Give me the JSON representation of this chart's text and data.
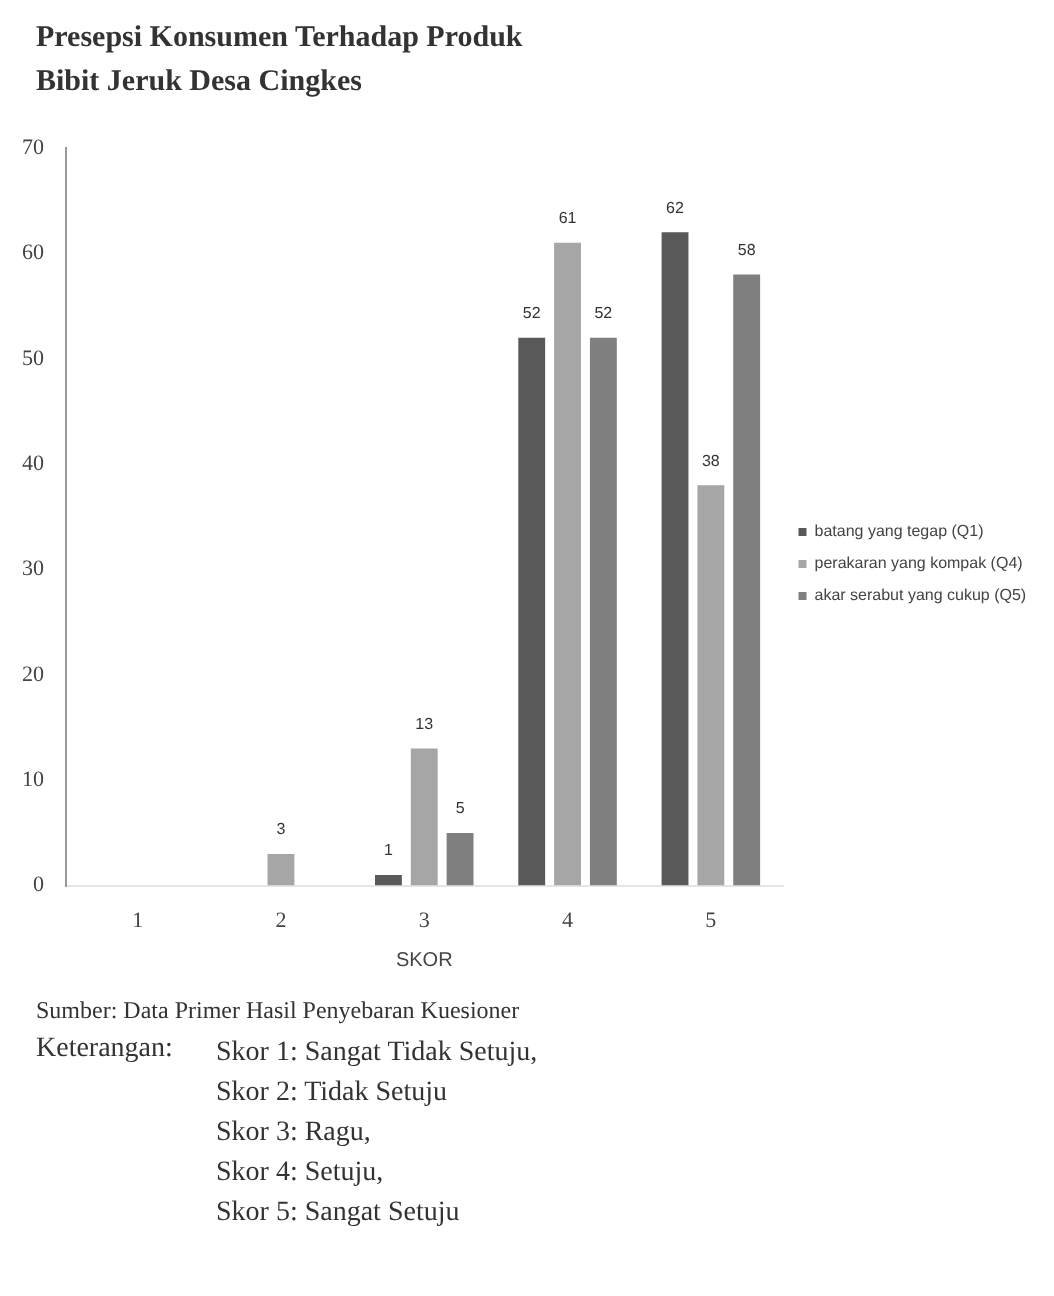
{
  "chart_data": {
    "type": "bar",
    "title": "Presepsi Konsumen Terhadap Produk Bibit Jeruk Desa Cingkes",
    "xlabel": "SKOR",
    "categories": [
      "1",
      "2",
      "3",
      "4",
      "5"
    ],
    "series": [
      {
        "name": "batang yang tegap (Q1)",
        "color": "#595959",
        "values": [
          0,
          0,
          1,
          52,
          62
        ],
        "value_labels": [
          null,
          null,
          "1",
          "52",
          "62"
        ]
      },
      {
        "name": "perakaran yang kompak (Q4)",
        "color": "#a6a6a6",
        "values": [
          0,
          3,
          13,
          61,
          38
        ],
        "value_labels": [
          null,
          "3",
          "13",
          "61",
          "38"
        ]
      },
      {
        "name": "akar serabut yang cukup (Q5)",
        "color": "#7f7f7f",
        "values": [
          0,
          0,
          5,
          52,
          58
        ],
        "value_labels": [
          null,
          null,
          "5",
          "52",
          "58"
        ]
      }
    ],
    "ylim": [
      0,
      70
    ],
    "yticks": [
      0,
      10,
      20,
      30,
      40,
      50,
      60,
      70
    ],
    "grid": false,
    "legend": "right",
    "annotations": [
      "Sumber: Data Primer Hasil Penyebaran Kuesioner",
      "Keterangan:",
      "Skor 1: Sangat Tidak Setuju,",
      "Skor 2: Tidak Setuju",
      "Skor 3: Ragu,",
      "Skor 4: Setuju,",
      "Skor 5: Sangat Setuju"
    ]
  }
}
